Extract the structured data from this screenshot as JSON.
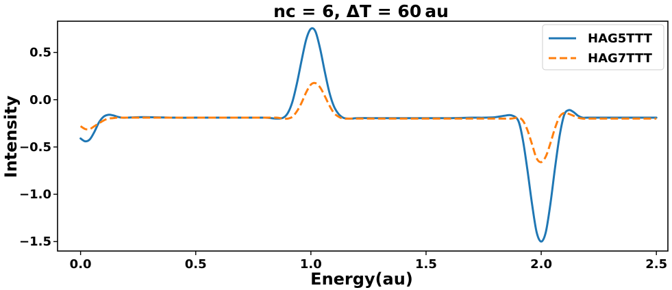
{
  "chart_data": {
    "type": "line",
    "title": "nc = 6, ΔT = 60 au",
    "xlabel": "Energy(au)",
    "ylabel": "Intensity",
    "xlim": [
      -0.1,
      2.55
    ],
    "ylim": [
      -1.6,
      0.83
    ],
    "xticks": [
      0.0,
      0.5,
      1.0,
      1.5,
      2.0,
      2.5
    ],
    "xtick_labels": [
      "0.0",
      "0.5",
      "1.0",
      "1.5",
      "2.0",
      "2.5"
    ],
    "yticks": [
      0.5,
      0.0,
      -0.5,
      -1.0,
      -1.5
    ],
    "ytick_labels": [
      "0.5",
      "0.0",
      "−0.5",
      "−1.0",
      "−1.5"
    ],
    "grid": false,
    "legend_position": "top-right",
    "series": [
      {
        "name": "HAG5TTT",
        "color": "#1f77b4",
        "style": "solid",
        "x": [
          0.0,
          0.02,
          0.04,
          0.06,
          0.08,
          0.1,
          0.12,
          0.14,
          0.16,
          0.18,
          0.2,
          0.25,
          0.3,
          0.4,
          0.5,
          0.6,
          0.7,
          0.8,
          0.85,
          0.88,
          0.9,
          0.92,
          0.94,
          0.96,
          0.98,
          1.0,
          1.02,
          1.04,
          1.06,
          1.08,
          1.1,
          1.12,
          1.14,
          1.16,
          1.18,
          1.2,
          1.3,
          1.4,
          1.5,
          1.6,
          1.7,
          1.75,
          1.8,
          1.84,
          1.87,
          1.9,
          1.92,
          1.94,
          1.96,
          1.98,
          2.0,
          2.02,
          2.04,
          2.06,
          2.08,
          2.1,
          2.12,
          2.14,
          2.16,
          2.18,
          2.2,
          2.25,
          2.3,
          2.4,
          2.5
        ],
        "y": [
          -0.41,
          -0.44,
          -0.42,
          -0.34,
          -0.24,
          -0.18,
          -0.16,
          -0.165,
          -0.18,
          -0.19,
          -0.19,
          -0.185,
          -0.185,
          -0.19,
          -0.19,
          -0.19,
          -0.19,
          -0.19,
          -0.2,
          -0.19,
          -0.14,
          -0.02,
          0.18,
          0.42,
          0.64,
          0.75,
          0.72,
          0.54,
          0.3,
          0.08,
          -0.07,
          -0.15,
          -0.19,
          -0.2,
          -0.2,
          -0.195,
          -0.195,
          -0.195,
          -0.195,
          -0.195,
          -0.19,
          -0.19,
          -0.185,
          -0.17,
          -0.165,
          -0.22,
          -0.42,
          -0.74,
          -1.1,
          -1.4,
          -1.5,
          -1.4,
          -1.1,
          -0.72,
          -0.38,
          -0.16,
          -0.11,
          -0.13,
          -0.17,
          -0.19,
          -0.19,
          -0.19,
          -0.19,
          -0.19,
          -0.19
        ]
      },
      {
        "name": "HAG7TTT",
        "color": "#ff7f0e",
        "style": "dashed",
        "x": [
          0.0,
          0.02,
          0.04,
          0.06,
          0.08,
          0.1,
          0.12,
          0.14,
          0.16,
          0.18,
          0.2,
          0.25,
          0.3,
          0.4,
          0.5,
          0.6,
          0.7,
          0.8,
          0.85,
          0.88,
          0.9,
          0.92,
          0.94,
          0.96,
          0.98,
          1.0,
          1.02,
          1.04,
          1.06,
          1.08,
          1.1,
          1.12,
          1.14,
          1.16,
          1.18,
          1.2,
          1.3,
          1.4,
          1.5,
          1.6,
          1.7,
          1.75,
          1.8,
          1.84,
          1.87,
          1.9,
          1.92,
          1.94,
          1.96,
          1.98,
          2.0,
          2.02,
          2.04,
          2.06,
          2.08,
          2.1,
          2.12,
          2.14,
          2.16,
          2.18,
          2.2,
          2.25,
          2.3,
          2.4,
          2.5
        ],
        "y": [
          -0.28,
          -0.31,
          -0.31,
          -0.28,
          -0.25,
          -0.22,
          -0.2,
          -0.195,
          -0.19,
          -0.19,
          -0.19,
          -0.19,
          -0.19,
          -0.19,
          -0.19,
          -0.19,
          -0.19,
          -0.19,
          -0.19,
          -0.2,
          -0.2,
          -0.18,
          -0.12,
          -0.03,
          0.08,
          0.16,
          0.175,
          0.13,
          0.04,
          -0.06,
          -0.14,
          -0.18,
          -0.2,
          -0.2,
          -0.2,
          -0.2,
          -0.2,
          -0.2,
          -0.2,
          -0.2,
          -0.2,
          -0.2,
          -0.2,
          -0.2,
          -0.2,
          -0.19,
          -0.22,
          -0.32,
          -0.47,
          -0.62,
          -0.66,
          -0.6,
          -0.46,
          -0.3,
          -0.18,
          -0.14,
          -0.15,
          -0.17,
          -0.19,
          -0.2,
          -0.2,
          -0.2,
          -0.2,
          -0.2,
          -0.2
        ]
      }
    ]
  }
}
